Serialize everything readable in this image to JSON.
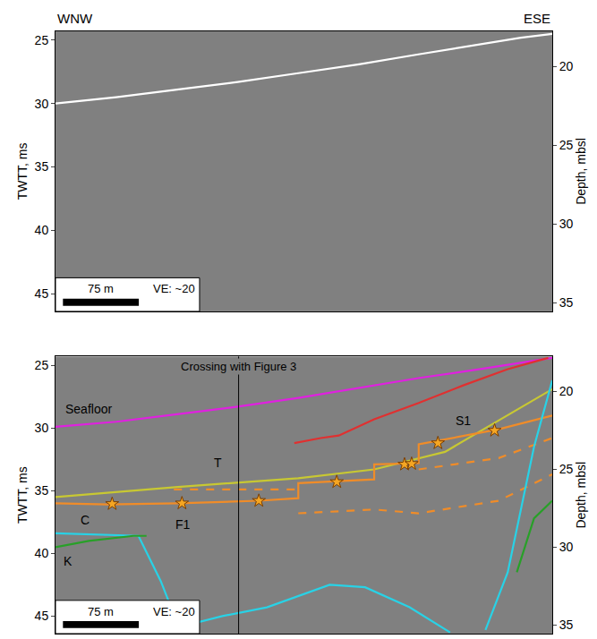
{
  "chart_data": [
    {
      "type": "line",
      "left_label": "WNW",
      "right_label": "ESE",
      "ylabel": "TWTT, ms",
      "y2label": "Depth, mbsl",
      "xlim": [
        0,
        491
      ],
      "ylim": [
        24.3,
        46.4
      ],
      "yticks": [
        25,
        30,
        35,
        40,
        45
      ],
      "y2lim": [
        17.78,
        35.55
      ],
      "y2ticks": [
        20,
        25,
        30,
        35
      ],
      "grid": false,
      "tick_labels": "y",
      "scale_bar": {
        "length": 75,
        "label": "75 m",
        "ve": "VE: ~20"
      },
      "series": [
        {
          "color": "#ffffff",
          "x": [
            0,
            60,
            120,
            180,
            240,
            300,
            360,
            420,
            460,
            491
          ],
          "values": [
            30.0,
            29.5,
            28.9,
            28.3,
            27.6,
            26.9,
            26.1,
            25.3,
            24.8,
            24.5
          ]
        }
      ]
    },
    {
      "type": "line",
      "ylabel": "TWTT, ms",
      "y2label": "Depth, mbsl",
      "xlim": [
        0,
        491
      ],
      "ylim": [
        24.3,
        46.4
      ],
      "yticks": [
        25,
        30,
        35,
        40,
        45
      ],
      "y2lim": [
        17.78,
        35.55
      ],
      "y2ticks": [
        20,
        25,
        30,
        35
      ],
      "grid": false,
      "tick_labels": "y",
      "scale_bar": {
        "length": 75,
        "label": "75 m",
        "ve": "VE: ~20"
      },
      "crossing": {
        "x": 181,
        "label": "Crossing with Figure 3"
      },
      "series": [
        {
          "name": "Seafloor",
          "label_at": [
            33,
            28.5
          ],
          "color": "#e020e0",
          "x": [
            0,
            60,
            120,
            180,
            240,
            300,
            360,
            420,
            460,
            491
          ],
          "values": [
            29.9,
            29.5,
            28.9,
            28.3,
            27.6,
            26.8,
            26.0,
            25.3,
            24.8,
            24.4
          ]
        },
        {
          "name": "S1",
          "label_at": [
            403,
            29.4
          ],
          "color": "#e03030",
          "x": [
            236,
            262,
            280,
            315,
            359,
            403,
            447,
            487
          ],
          "values": [
            31.2,
            30.8,
            30.6,
            29.3,
            28.0,
            26.6,
            25.3,
            24.4
          ]
        },
        {
          "name": "T",
          "label_at": [
            161,
            32.8
          ],
          "color": "#c8c832",
          "x": [
            0,
            121,
            240,
            315,
            385,
            447,
            491
          ],
          "values": [
            35.5,
            34.7,
            34.0,
            33.3,
            31.9,
            29.0,
            26.9
          ]
        },
        {
          "name": "F1",
          "label_at": [
            126,
            37.7
          ],
          "color": "#f08c28",
          "x": [
            0,
            51,
            121,
            201,
            240,
            240,
            315,
            315,
            359,
            359,
            438,
            491
          ],
          "values": [
            36.0,
            36.1,
            36.0,
            35.8,
            35.6,
            34.4,
            34.1,
            32.9,
            32.8,
            31.3,
            30.1,
            29.0
          ]
        },
        {
          "color": "#f08c28",
          "line_style": "dashed",
          "x": [
            117,
            240
          ],
          "values": [
            34.9,
            34.9
          ]
        },
        {
          "color": "#f08c28",
          "line_style": "dashed",
          "x": [
            240,
            315,
            359,
            438,
            491
          ],
          "values": [
            36.8,
            36.5,
            36.8,
            35.8,
            33.7
          ]
        },
        {
          "color": "#f08c28",
          "line_style": "dashed",
          "x": [
            359,
            438,
            491
          ],
          "values": [
            33.3,
            32.4,
            30.8
          ]
        },
        {
          "name": "C",
          "label_at": [
            29,
            37.3
          ],
          "color": "#28d2e6",
          "x": [
            0,
            82,
            104,
            121
          ],
          "values": [
            38.4,
            38.6,
            42.2,
            45.7
          ]
        },
        {
          "color": "#28d2e6",
          "x": [
            121,
            165,
            209,
            271,
            306,
            350,
            390
          ],
          "values": [
            45.9,
            45.0,
            44.3,
            42.5,
            42.7,
            44.3,
            46.3
          ]
        },
        {
          "color": "#28d2e6",
          "x": [
            425,
            447,
            473,
            491
          ],
          "values": [
            46.1,
            41.5,
            31.5,
            26.2
          ]
        },
        {
          "name": "K",
          "label_at": [
            12,
            40.6
          ],
          "color": "#28a028",
          "x": [
            0,
            33,
            77,
            90
          ],
          "values": [
            39.5,
            39.0,
            38.6,
            38.6
          ]
        },
        {
          "color": "#28a028",
          "x": [
            456,
            473,
            491
          ],
          "values": [
            41.5,
            37.2,
            35.8
          ]
        },
        {
          "type": "scatter",
          "marker": "star",
          "color": "#f5a623",
          "x": [
            56,
            125,
            201,
            278,
            345,
            352,
            378,
            434
          ],
          "values": [
            36.05,
            36.0,
            35.8,
            34.3,
            32.9,
            32.85,
            31.2,
            30.2
          ]
        }
      ]
    }
  ]
}
